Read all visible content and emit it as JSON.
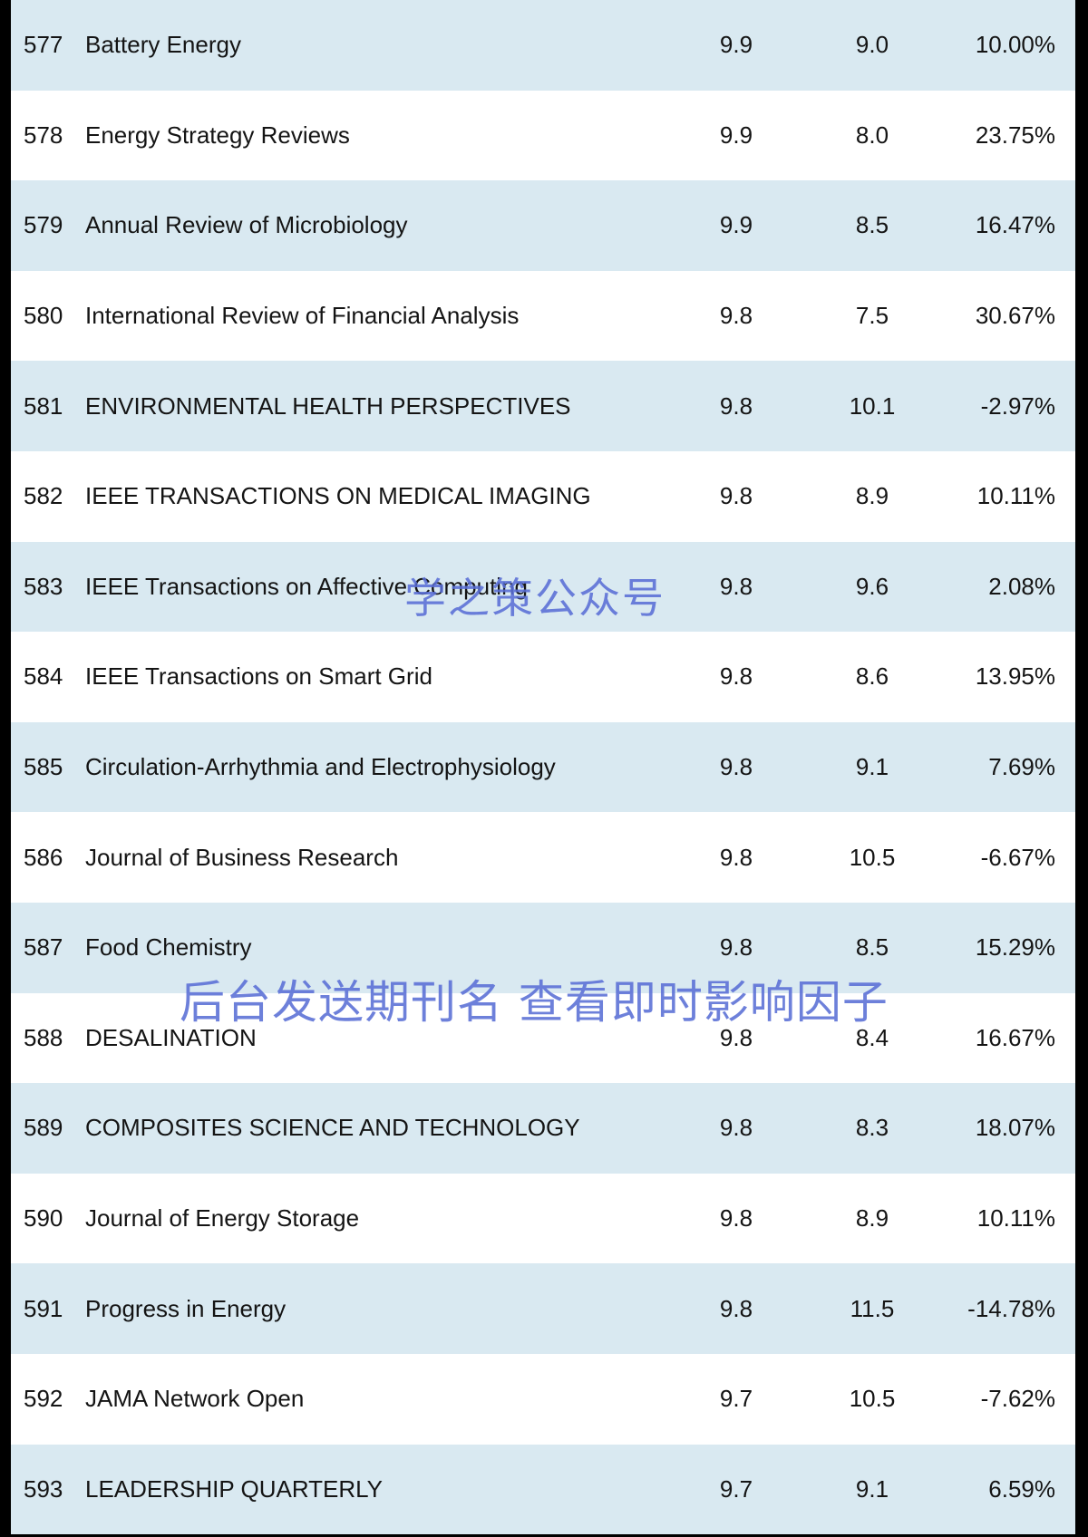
{
  "rows": [
    {
      "rank": "577",
      "name": "Battery Energy",
      "v1": "9.9",
      "v2": "9.0",
      "v3": "10.00%"
    },
    {
      "rank": "578",
      "name": "Energy Strategy Reviews",
      "v1": "9.9",
      "v2": "8.0",
      "v3": "23.75%"
    },
    {
      "rank": "579",
      "name": "Annual Review of Microbiology",
      "v1": "9.9",
      "v2": "8.5",
      "v3": "16.47%"
    },
    {
      "rank": "580",
      "name": "International Review of Financial Analysis",
      "v1": "9.8",
      "v2": "7.5",
      "v3": "30.67%"
    },
    {
      "rank": "581",
      "name": "ENVIRONMENTAL HEALTH PERSPECTIVES",
      "v1": "9.8",
      "v2": "10.1",
      "v3": "-2.97%"
    },
    {
      "rank": "582",
      "name": "IEEE TRANSACTIONS ON MEDICAL IMAGING",
      "v1": "9.8",
      "v2": "8.9",
      "v3": "10.11%"
    },
    {
      "rank": "583",
      "name": "IEEE Transactions on Affective Computing",
      "v1": "9.8",
      "v2": "9.6",
      "v3": "2.08%"
    },
    {
      "rank": "584",
      "name": "IEEE Transactions on Smart Grid",
      "v1": "9.8",
      "v2": "8.6",
      "v3": "13.95%"
    },
    {
      "rank": "585",
      "name": "Circulation-Arrhythmia and Electrophysiology",
      "v1": "9.8",
      "v2": "9.1",
      "v3": "7.69%"
    },
    {
      "rank": "586",
      "name": "Journal of Business Research",
      "v1": "9.8",
      "v2": "10.5",
      "v3": "-6.67%"
    },
    {
      "rank": "587",
      "name": "Food Chemistry",
      "v1": "9.8",
      "v2": "8.5",
      "v3": "15.29%"
    },
    {
      "rank": "588",
      "name": "DESALINATION",
      "v1": "9.8",
      "v2": "8.4",
      "v3": "16.67%"
    },
    {
      "rank": "589",
      "name": "COMPOSITES SCIENCE AND TECHNOLOGY",
      "v1": "9.8",
      "v2": "8.3",
      "v3": "18.07%"
    },
    {
      "rank": "590",
      "name": "Journal of Energy Storage",
      "v1": "9.8",
      "v2": "8.9",
      "v3": "10.11%"
    },
    {
      "rank": "591",
      "name": "Progress in Energy",
      "v1": "9.8",
      "v2": "11.5",
      "v3": "-14.78%"
    },
    {
      "rank": "592",
      "name": "JAMA Network Open",
      "v1": "9.7",
      "v2": "10.5",
      "v3": "-7.62%"
    },
    {
      "rank": "593",
      "name": "LEADERSHIP QUARTERLY",
      "v1": "9.7",
      "v2": "9.1",
      "v3": "6.59%"
    }
  ],
  "watermarks": {
    "top": "学之策公众号",
    "bottom": "后台发送期刊名 查看即时影响因子"
  },
  "colors": {
    "shaded_row": "#d9e9f1",
    "plain_row": "#ffffff",
    "border": "#000000",
    "watermark": "#5a6fd6"
  }
}
